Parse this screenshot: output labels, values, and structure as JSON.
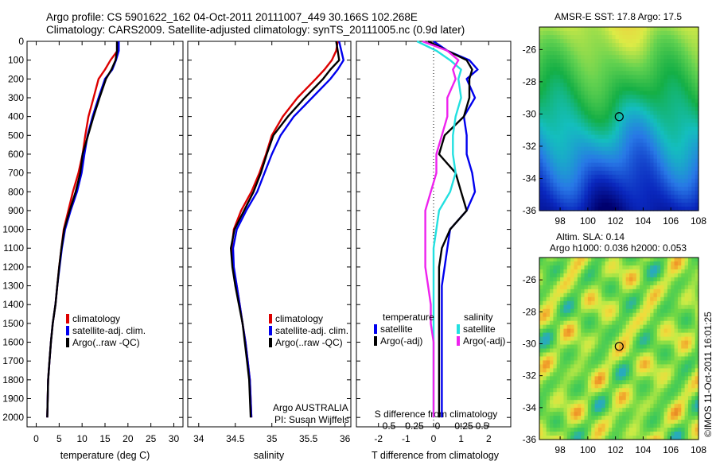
{
  "header": {
    "line1": "Argo profile: CS 5901622_162 04-Oct-2011 20111007_449 30.166S 102.268E",
    "line2": "Climatology: CARS2009. Satellite-adjusted climatology: synTS_20111005.nc (0.9d later)"
  },
  "depth_ticks": [
    "0",
    "100",
    "200",
    "300",
    "400",
    "500",
    "600",
    "700",
    "800",
    "900",
    "1000",
    "1100",
    "1200",
    "1300",
    "1400",
    "1500",
    "1600",
    "1700",
    "1800",
    "1900",
    "2000"
  ],
  "colors": {
    "climatology": "#dd0000",
    "satellite": "#0000ee",
    "argo": "#000000",
    "cyan": "#22e0e0",
    "magenta": "#ee22ee"
  },
  "panels": {
    "temperature": {
      "xlabel": "temperature (deg C)",
      "xticks": [
        "0",
        "5",
        "10",
        "15",
        "20",
        "25",
        "30"
      ],
      "legend": [
        "climatology",
        "satellite-adj. clim.",
        "Argo(..raw -QC)"
      ]
    },
    "salinity": {
      "xlabel": "salinity",
      "xticks": [
        "34",
        "34.5",
        "35",
        "35.5",
        "36"
      ],
      "legend": [
        "climatology",
        "satellite-adj. clim.",
        "Argo(..raw -QC)"
      ],
      "credit1": "Argo AUSTRALIA",
      "credit2": "PI: Susan Wijffels"
    },
    "difference": {
      "top_label": "S difference from climatology",
      "top_ticks": [
        "-0.5",
        "-0.25",
        "0",
        "0.25",
        "0.5"
      ],
      "xlabel": "T difference from climatology",
      "xticks": [
        "-2",
        "-1",
        "0",
        "1",
        "2"
      ],
      "legend_t_title": "temperature",
      "legend_t": [
        "satellite",
        "Argo(-adj)"
      ],
      "legend_s_title": "salinity",
      "legend_s": [
        "satellite",
        "Argo(-adj)"
      ]
    }
  },
  "maps": {
    "sst_title": "AMSR-E SST: 17.8 Argo: 17.5",
    "sla_title1": "Altim. SLA: 0.14",
    "sla_title2": "Argo h1000: 0.036 h2000: 0.053",
    "yticks": [
      "-26",
      "-28",
      "-30",
      "-32",
      "-34",
      "-36"
    ],
    "xticks": [
      "98",
      "100",
      "102",
      "104",
      "106",
      "108"
    ]
  },
  "side_text": "©IMOS 11-Oct-2011 16:01:25",
  "chart_data": [
    {
      "type": "line",
      "title": "",
      "xlabel": "temperature (deg C)",
      "ylabel": "",
      "xlim": [
        -2,
        32
      ],
      "ylim": [
        2050,
        0
      ],
      "series": [
        {
          "name": "climatology",
          "x": [
            18,
            17.7,
            16.2,
            15,
            13.6,
            12.5,
            11.4,
            10.7,
            10.1,
            9.2,
            8,
            7,
            6,
            5.5,
            5,
            4.6,
            4.2,
            3.6,
            3.2,
            2.9,
            2.6,
            2.4
          ],
          "y": [
            0,
            50,
            100,
            150,
            200,
            300,
            400,
            500,
            600,
            700,
            800,
            900,
            1000,
            1100,
            1200,
            1300,
            1400,
            1500,
            1600,
            1700,
            1800,
            2000
          ]
        },
        {
          "name": "satellite-adj. clim.",
          "x": [
            18,
            18,
            17.4,
            16.6,
            15,
            13.6,
            12.3,
            11.2,
            10.5,
            9.9,
            8.9,
            7.5,
            6.3,
            5.6,
            5.1,
            4.6,
            4.2,
            3.6,
            3.2,
            2.9,
            2.6,
            2.4
          ],
          "y": [
            0,
            50,
            100,
            150,
            200,
            300,
            400,
            500,
            600,
            700,
            800,
            900,
            1000,
            1100,
            1200,
            1300,
            1400,
            1500,
            1600,
            1700,
            1800,
            2000
          ]
        },
        {
          "name": "Argo(..raw -QC)",
          "x": [
            17.6,
            17.6,
            17.3,
            16.4,
            15.2,
            13.8,
            12.5,
            11.3,
            10.1,
            9.6,
            8.6,
            7.3,
            6.1,
            5.5,
            5,
            4.6,
            4.2,
            3.6,
            3.2,
            2.9,
            2.6,
            2.4
          ],
          "y": [
            0,
            50,
            100,
            150,
            200,
            300,
            400,
            500,
            600,
            700,
            800,
            900,
            1000,
            1100,
            1200,
            1300,
            1400,
            1500,
            1600,
            1700,
            1800,
            2000
          ]
        }
      ]
    },
    {
      "type": "line",
      "title": "",
      "xlabel": "salinity",
      "ylabel": "",
      "xlim": [
        33.85,
        36.08
      ],
      "ylim": [
        2050,
        0
      ],
      "series": [
        {
          "name": "climatology",
          "x": [
            35.9,
            35.88,
            35.82,
            35.72,
            35.6,
            35.35,
            35.15,
            35.0,
            34.92,
            34.83,
            34.72,
            34.58,
            34.48,
            34.45,
            34.47,
            34.52,
            34.56,
            34.6,
            34.64,
            34.67,
            34.7,
            34.72
          ],
          "y": [
            0,
            50,
            100,
            150,
            200,
            300,
            400,
            500,
            600,
            700,
            800,
            900,
            1000,
            1100,
            1200,
            1300,
            1400,
            1500,
            1600,
            1700,
            1800,
            2000
          ]
        },
        {
          "name": "satellite-adj. clim.",
          "x": [
            35.92,
            35.95,
            35.98,
            35.9,
            35.8,
            35.55,
            35.3,
            35.12,
            35.0,
            34.9,
            34.8,
            34.65,
            34.52,
            34.47,
            34.48,
            34.52,
            34.56,
            34.6,
            34.64,
            34.67,
            34.7,
            34.72
          ],
          "y": [
            0,
            50,
            100,
            150,
            200,
            300,
            400,
            500,
            600,
            700,
            800,
            900,
            1000,
            1100,
            1200,
            1300,
            1400,
            1500,
            1600,
            1700,
            1800,
            2000
          ]
        },
        {
          "name": "Argo(..raw -QC)",
          "x": [
            35.88,
            35.9,
            35.92,
            35.8,
            35.7,
            35.45,
            35.22,
            35.02,
            34.93,
            34.85,
            34.75,
            34.62,
            34.49,
            34.44,
            34.46,
            34.5,
            34.55,
            34.6,
            34.63,
            34.66,
            34.69,
            34.71
          ],
          "y": [
            0,
            50,
            100,
            150,
            200,
            300,
            400,
            500,
            600,
            700,
            800,
            900,
            1000,
            1100,
            1200,
            1300,
            1400,
            1500,
            1600,
            1700,
            1800,
            2000
          ]
        }
      ]
    },
    {
      "type": "line",
      "title": "",
      "xlabel": "T difference from climatology",
      "ylabel": "",
      "xlim": [
        -2.8,
        2.8
      ],
      "ylim": [
        2050,
        0
      ],
      "series": [
        {
          "name": "temperature satellite",
          "x": [
            0,
            0.5,
            1.3,
            1.6,
            1.2,
            1.5,
            1.1,
            1.2,
            1.2,
            1.4,
            1.5,
            1.2,
            0.6,
            0.5,
            0.4,
            0.3,
            0.3,
            0.3,
            0.3,
            0.3,
            0.3,
            0.3
          ],
          "y": [
            0,
            50,
            100,
            150,
            200,
            300,
            400,
            500,
            600,
            700,
            800,
            900,
            1000,
            1100,
            1200,
            1300,
            1400,
            1500,
            1600,
            1700,
            1800,
            2000
          ]
        },
        {
          "name": "temperature Argo(-adj)",
          "x": [
            -0.2,
            0.5,
            1.2,
            1.4,
            1.3,
            1.3,
            1.1,
            0.4,
            0.2,
            0.8,
            1.0,
            1.2,
            0.6,
            0.3,
            0.2,
            0.2,
            0.2,
            0.2,
            0.2,
            0.2,
            0.2,
            0.2
          ],
          "y": [
            0,
            50,
            100,
            150,
            200,
            300,
            400,
            500,
            600,
            700,
            800,
            900,
            1000,
            1100,
            1200,
            1300,
            1400,
            1500,
            1600,
            1700,
            1800,
            2000
          ]
        },
        {
          "name": "salinity satellite",
          "x": [
            -0.6,
            0.1,
            0.6,
            1.0,
            0.9,
            1.0,
            0.8,
            0.7,
            0.7,
            0.8,
            0.6,
            0.2,
            0.1,
            0,
            0,
            0,
            0,
            0,
            0,
            0,
            0,
            0
          ],
          "y": [
            0,
            50,
            100,
            150,
            200,
            300,
            400,
            500,
            600,
            700,
            800,
            900,
            1000,
            1100,
            1200,
            1300,
            1400,
            1500,
            1600,
            1700,
            1800,
            2000
          ]
        },
        {
          "name": "salinity Argo(-adj)",
          "x": [
            -0.4,
            0.5,
            0.9,
            0.7,
            0.8,
            0.5,
            0.5,
            0.3,
            0.1,
            0.1,
            -0.1,
            -0.3,
            -0.3,
            -0.3,
            -0.3,
            -0.2,
            -0.1,
            -0.1,
            0,
            0,
            0,
            0
          ],
          "y": [
            0,
            50,
            100,
            150,
            200,
            300,
            400,
            500,
            600,
            700,
            800,
            900,
            1000,
            1100,
            1200,
            1300,
            1400,
            1500,
            1600,
            1700,
            1800,
            2000
          ]
        }
      ]
    },
    {
      "type": "heatmap",
      "title": "AMSR-E SST: 17.8 Argo: 17.5",
      "xlim": [
        96.5,
        108
      ],
      "ylim": [
        -36,
        -24.6
      ],
      "marker": {
        "lon": 102.268,
        "lat": -30.166
      }
    },
    {
      "type": "heatmap",
      "title": "Altim. SLA: 0.14",
      "xlim": [
        96.5,
        108
      ],
      "ylim": [
        -36,
        -24.6
      ],
      "marker": {
        "lon": 102.268,
        "lat": -30.166
      }
    }
  ]
}
